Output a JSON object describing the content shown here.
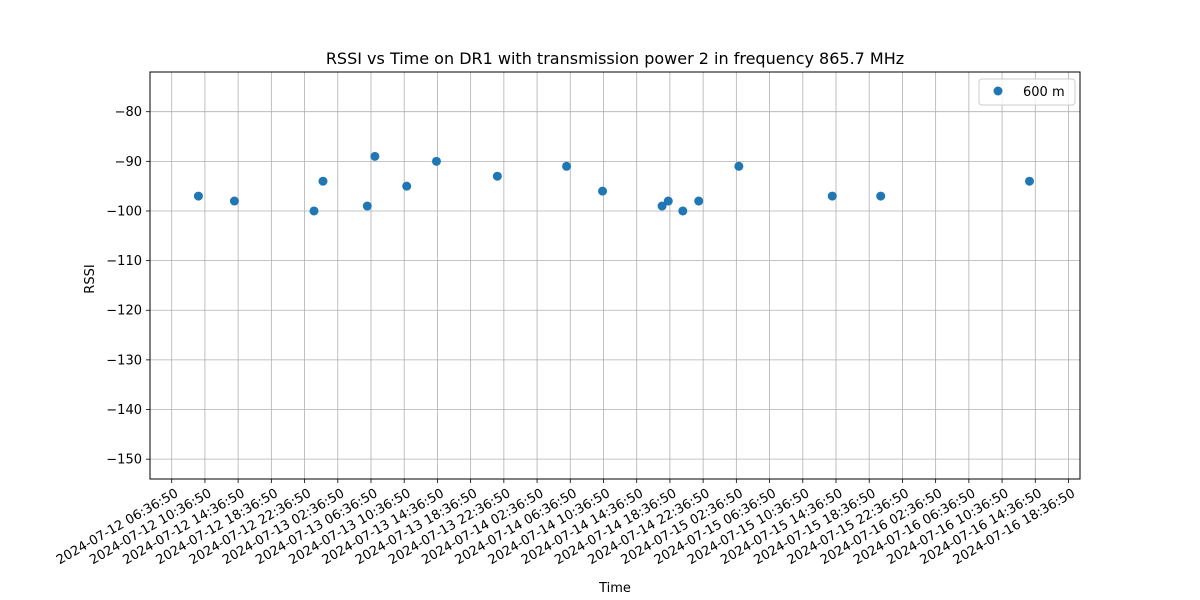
{
  "chart_data": {
    "type": "scatter",
    "title": "RSSI vs Time on DR1 with transmission power 2 in frequency 865.7 MHz",
    "xlabel": "Time",
    "ylabel": "RSSI",
    "ylim": [
      -154,
      -72
    ],
    "xlim": [
      "2024-07-12 04:00:00",
      "2024-07-16 20:00:00"
    ],
    "grid": true,
    "legend_position": "top-right",
    "x_tick_labels": [
      "2024-07-12 06:36:50",
      "2024-07-12 10:36:50",
      "2024-07-12 14:36:50",
      "2024-07-12 18:36:50",
      "2024-07-12 22:36:50",
      "2024-07-13 02:36:50",
      "2024-07-13 06:36:50",
      "2024-07-13 10:36:50",
      "2024-07-13 14:36:50",
      "2024-07-13 18:36:50",
      "2024-07-13 22:36:50",
      "2024-07-14 02:36:50",
      "2024-07-14 06:36:50",
      "2024-07-14 10:36:50",
      "2024-07-14 14:36:50",
      "2024-07-14 18:36:50",
      "2024-07-14 22:36:50",
      "2024-07-15 02:36:50",
      "2024-07-15 06:36:50",
      "2024-07-15 10:36:50",
      "2024-07-15 14:36:50",
      "2024-07-15 18:36:50",
      "2024-07-15 22:36:50",
      "2024-07-16 02:36:50",
      "2024-07-16 06:36:50",
      "2024-07-16 10:36:50",
      "2024-07-16 14:36:50",
      "2024-07-16 18:36:50"
    ],
    "y_ticks": [
      -150,
      -140,
      -130,
      -120,
      -110,
      -100,
      -90,
      -80
    ],
    "y_tick_labels": [
      "−150",
      "−140",
      "−130",
      "−120",
      "−110",
      "−100",
      "−90",
      "−80"
    ],
    "series": [
      {
        "name": "600 m",
        "color": "#1f77b4",
        "points": [
          {
            "x": "2024-07-12 09:50:00",
            "y": -97
          },
          {
            "x": "2024-07-12 14:10:00",
            "y": -98
          },
          {
            "x": "2024-07-12 23:45:00",
            "y": -100
          },
          {
            "x": "2024-07-13 00:50:00",
            "y": -94
          },
          {
            "x": "2024-07-13 06:10:00",
            "y": -99
          },
          {
            "x": "2024-07-13 07:05:00",
            "y": -89
          },
          {
            "x": "2024-07-13 10:55:00",
            "y": -95
          },
          {
            "x": "2024-07-13 14:30:00",
            "y": -90
          },
          {
            "x": "2024-07-13 21:50:00",
            "y": -93
          },
          {
            "x": "2024-07-14 06:10:00",
            "y": -91
          },
          {
            "x": "2024-07-14 10:30:00",
            "y": -96
          },
          {
            "x": "2024-07-14 17:40:00",
            "y": -99
          },
          {
            "x": "2024-07-14 18:25:00",
            "y": -98
          },
          {
            "x": "2024-07-14 20:10:00",
            "y": -100
          },
          {
            "x": "2024-07-14 22:05:00",
            "y": -98
          },
          {
            "x": "2024-07-15 02:55:00",
            "y": -91
          },
          {
            "x": "2024-07-15 14:10:00",
            "y": -97
          },
          {
            "x": "2024-07-15 20:00:00",
            "y": -97
          },
          {
            "x": "2024-07-16 13:55:00",
            "y": -94
          }
        ]
      }
    ]
  }
}
